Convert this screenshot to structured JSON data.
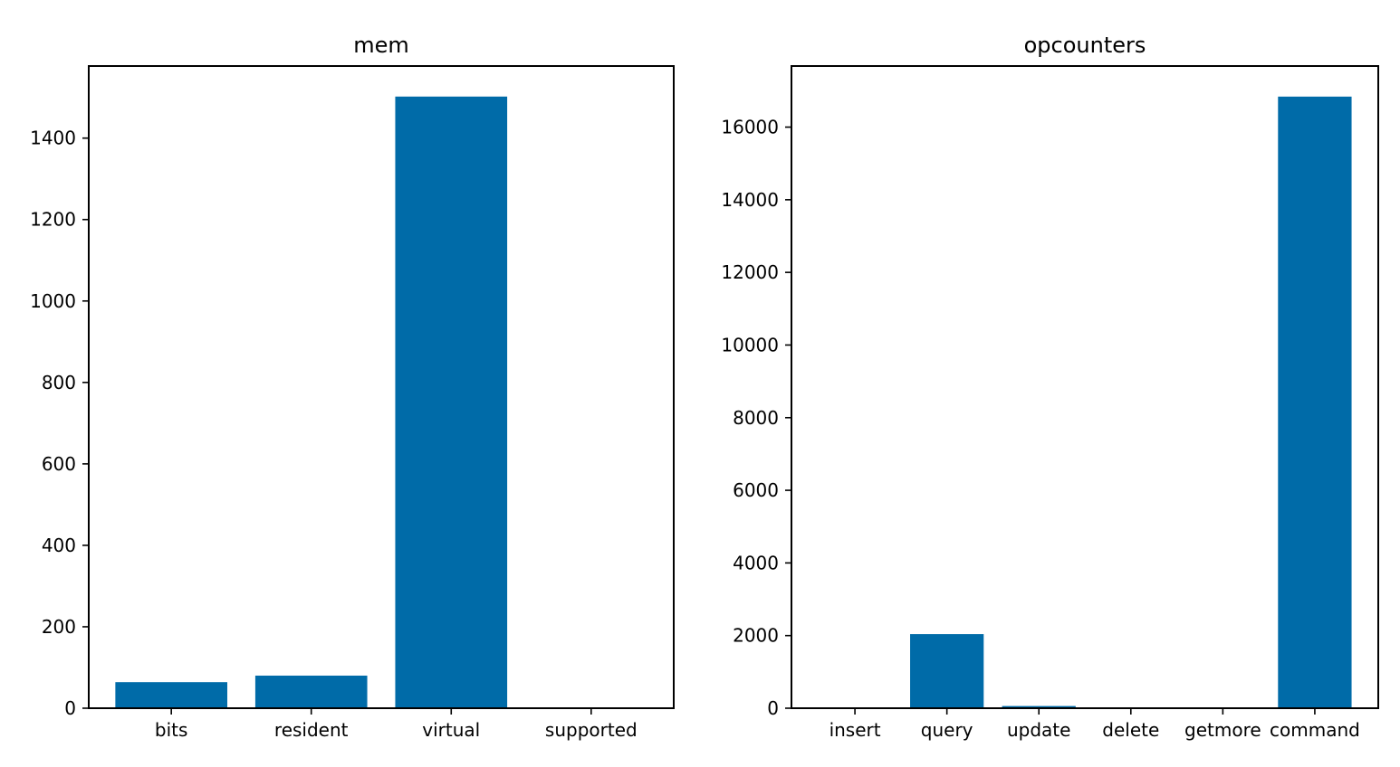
{
  "colors": {
    "bar": "#006ba8"
  },
  "chart_data": [
    {
      "type": "bar",
      "title": "mem",
      "xlabel": "",
      "ylabel": "",
      "categories": [
        "bits",
        "resident",
        "virtual",
        "supported"
      ],
      "values": [
        64,
        80,
        1502,
        0
      ],
      "ylim": [
        0,
        1577
      ],
      "yticks": [
        0,
        200,
        400,
        600,
        800,
        1000,
        1200,
        1400
      ],
      "grid": false
    },
    {
      "type": "bar",
      "title": "opcounters",
      "xlabel": "",
      "ylabel": "",
      "categories": [
        "insert",
        "query",
        "update",
        "delete",
        "getmore",
        "command"
      ],
      "values": [
        0,
        2040,
        60,
        0,
        0,
        16840
      ],
      "ylim": [
        0,
        17682
      ],
      "yticks": [
        0,
        2000,
        4000,
        6000,
        8000,
        10000,
        12000,
        14000,
        16000
      ],
      "grid": false
    }
  ]
}
